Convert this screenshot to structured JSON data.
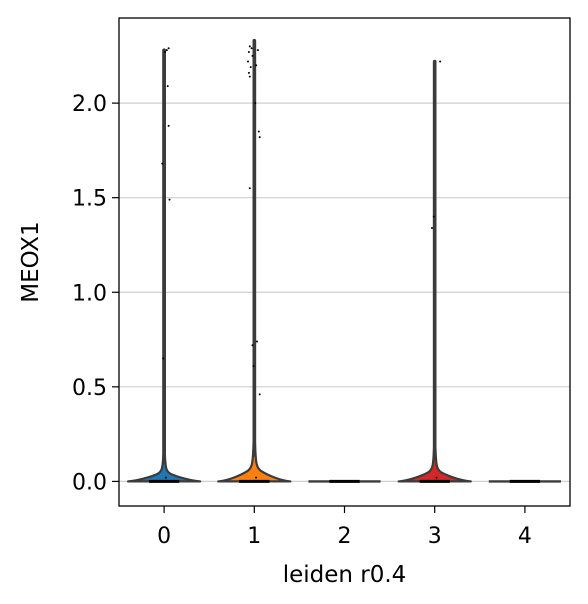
{
  "chart_data": {
    "type": "violin",
    "title": "",
    "xlabel": "leiden r0.4",
    "ylabel": "MEOX1",
    "ylim": [
      -0.13,
      2.45
    ],
    "yticks": [
      "0.0",
      "0.5",
      "1.0",
      "1.5",
      "2.0"
    ],
    "grid": "horizontal",
    "categories": [
      "0",
      "1",
      "2",
      "3",
      "4"
    ],
    "colors": [
      "#1f77b4",
      "#ff7f0e",
      "#2ca02c",
      "#d62728",
      "#9467bd"
    ],
    "violins": [
      {
        "category": "0",
        "max": 2.28,
        "peak_density_height": 0.05,
        "points": [
          {
            "y": 2.28,
            "dx": 0.03
          },
          {
            "y": 2.29,
            "dx": 0.05
          },
          {
            "y": 2.27,
            "dx": 0.01
          },
          {
            "y": 2.09,
            "dx": 0.04
          },
          {
            "y": 1.88,
            "dx": 0.05
          },
          {
            "y": 1.68,
            "dx": -0.02
          },
          {
            "y": 1.49,
            "dx": 0.06
          },
          {
            "y": 0.65,
            "dx": -0.01
          },
          {
            "y": 0.02,
            "dx": 0.02
          }
        ]
      },
      {
        "category": "1",
        "max": 2.33,
        "peak_density_height": 0.07,
        "points": [
          {
            "y": 2.3,
            "dx": -0.05
          },
          {
            "y": 2.29,
            "dx": -0.03
          },
          {
            "y": 2.27,
            "dx": -0.06
          },
          {
            "y": 2.25,
            "dx": -0.02
          },
          {
            "y": 2.22,
            "dx": -0.07
          },
          {
            "y": 2.19,
            "dx": -0.04
          },
          {
            "y": 2.16,
            "dx": -0.06
          },
          {
            "y": 2.14,
            "dx": -0.05
          },
          {
            "y": 2.28,
            "dx": 0.04
          },
          {
            "y": 2.2,
            "dx": 0.02
          },
          {
            "y": 2.0,
            "dx": 0.01
          },
          {
            "y": 1.85,
            "dx": 0.05
          },
          {
            "y": 1.82,
            "dx": 0.06
          },
          {
            "y": 1.55,
            "dx": -0.05
          },
          {
            "y": 0.74,
            "dx": 0.03
          },
          {
            "y": 0.72,
            "dx": -0.02
          },
          {
            "y": 0.61,
            "dx": -0.01
          },
          {
            "y": 0.46,
            "dx": 0.06
          },
          {
            "y": 0.02,
            "dx": 0.02
          }
        ]
      },
      {
        "category": "2",
        "max": 0.0,
        "peak_density_height": 0.0,
        "points": []
      },
      {
        "category": "3",
        "max": 2.22,
        "peak_density_height": 0.06,
        "points": [
          {
            "y": 2.22,
            "dx": 0.06
          },
          {
            "y": 1.4,
            "dx": -0.01
          },
          {
            "y": 1.34,
            "dx": -0.03
          },
          {
            "y": 0.02,
            "dx": 0.02
          }
        ]
      },
      {
        "category": "4",
        "max": 0.0,
        "peak_density_height": 0.0,
        "points": []
      }
    ]
  }
}
